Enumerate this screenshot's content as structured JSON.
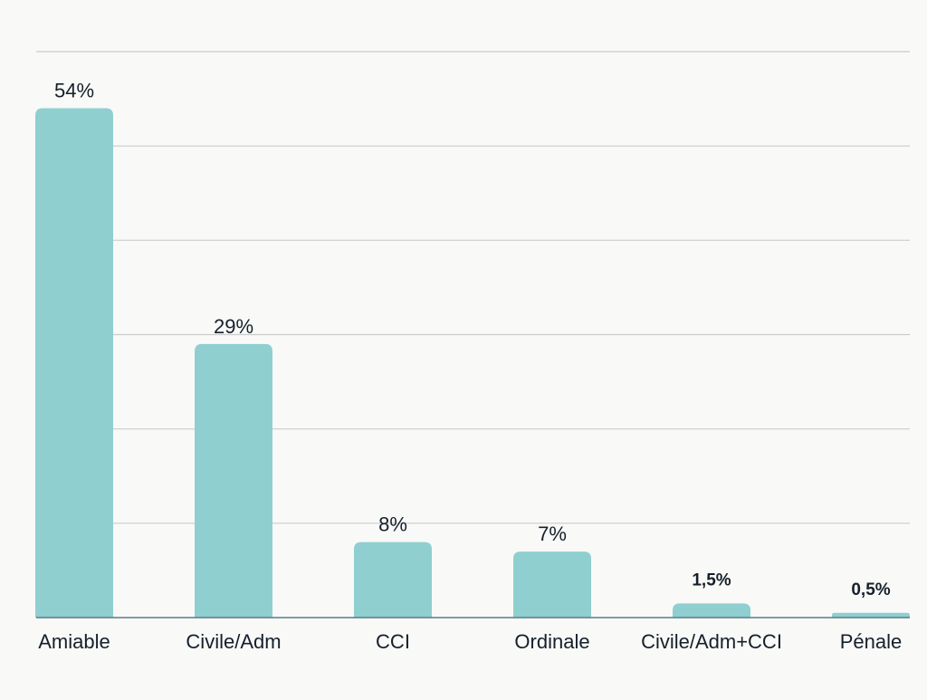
{
  "chart_data": {
    "type": "bar",
    "title": "",
    "xlabel": "",
    "ylabel": "",
    "categories": [
      "Amiable",
      "Civile/Adm",
      "CCI",
      "Ordinale",
      "Civile/Adm+CCI",
      "Pénale"
    ],
    "values": [
      54,
      29,
      8,
      7,
      1.5,
      0.5
    ],
    "data_labels": [
      "54%",
      "29%",
      "8%",
      "7%",
      "1,5%",
      "0,5%"
    ],
    "ylim": [
      0,
      60
    ],
    "grid": true,
    "legend": "none",
    "colors": {
      "bar": "#8fcfcf",
      "grid": "#cccccc",
      "baseline": "#5a7a88",
      "text": "#15202b",
      "background": "#f9f9f7"
    }
  }
}
